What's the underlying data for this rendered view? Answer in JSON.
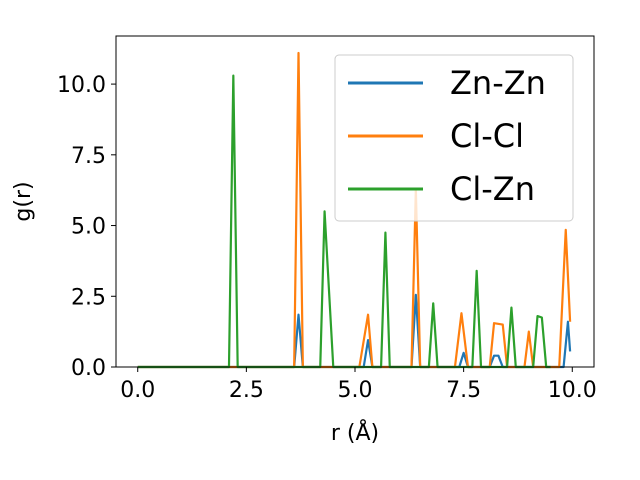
{
  "chart_data": {
    "type": "line",
    "xlabel": "r (Å)",
    "ylabel": "g(r)",
    "xlim": [
      -0.5,
      10.5
    ],
    "ylim": [
      0,
      11.7
    ],
    "xticks": [
      0.0,
      2.5,
      5.0,
      7.5,
      10.0
    ],
    "xtick_labels": [
      "0.0",
      "2.5",
      "5.0",
      "7.5",
      "10.0"
    ],
    "yticks": [
      0.0,
      2.5,
      5.0,
      7.5,
      10.0
    ],
    "ytick_labels": [
      "0.0",
      "2.5",
      "5.0",
      "7.5",
      "10.0"
    ],
    "grid": false,
    "legend_position": "top-right",
    "series": [
      {
        "name": "Zn-Zn",
        "color": "#1f77b4",
        "x": [
          0,
          3.6,
          3.7,
          3.8,
          5.2,
          5.3,
          5.4,
          6.3,
          6.4,
          6.5,
          7.4,
          7.5,
          7.6,
          8.1,
          8.2,
          8.3,
          8.4,
          9.8,
          9.9,
          9.95
        ],
        "y": [
          0,
          0,
          1.85,
          0,
          0,
          0.95,
          0,
          0,
          2.55,
          0,
          0,
          0.5,
          0,
          0,
          0.4,
          0.4,
          0,
          0,
          1.6,
          0.55
        ]
      },
      {
        "name": "Cl-Cl",
        "color": "#ff7f0e",
        "x": [
          0,
          3.6,
          3.7,
          3.8,
          5.1,
          5.3,
          5.4,
          6.3,
          6.4,
          6.5,
          7.3,
          7.45,
          7.6,
          8.1,
          8.2,
          8.4,
          8.5,
          8.9,
          9.0,
          9.1,
          9.7,
          9.85,
          9.95
        ],
        "y": [
          0,
          0,
          11.1,
          0,
          0,
          1.85,
          0,
          0,
          6.3,
          0,
          0,
          1.9,
          0,
          0,
          1.55,
          1.5,
          0,
          0,
          1.25,
          0,
          0,
          4.85,
          1.6
        ]
      },
      {
        "name": "Cl-Zn",
        "color": "#2ca02c",
        "x": [
          0,
          2.1,
          2.2,
          2.3,
          4.2,
          4.3,
          4.5,
          5.6,
          5.7,
          5.8,
          6.7,
          6.8,
          6.9,
          7.7,
          7.8,
          7.9,
          8.5,
          8.6,
          8.7,
          9.1,
          9.2,
          9.3,
          9.4,
          9.5
        ],
        "y": [
          0,
          0,
          10.3,
          0,
          0,
          5.5,
          0,
          0,
          4.75,
          0,
          0,
          2.25,
          0,
          0,
          3.4,
          0,
          0,
          2.1,
          0,
          0,
          1.8,
          1.75,
          0,
          0
        ]
      }
    ]
  }
}
